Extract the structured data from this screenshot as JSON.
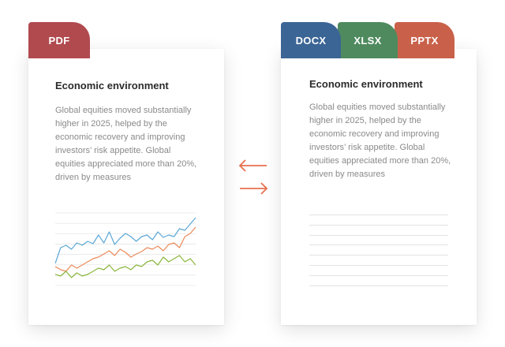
{
  "colors": {
    "pdf": "#b04a4f",
    "docx": "#3b6595",
    "xlsx": "#4f8a5f",
    "pptx": "#c9614a",
    "arrow": "#e8704d",
    "line_blue": "#5aa7d6",
    "line_orange": "#ec8a5a",
    "line_green": "#8ab63c"
  },
  "tabs": {
    "pdf": "PDF",
    "docx": "DOCX",
    "xlsx": "XLSX",
    "pptx": "PPTX"
  },
  "left_card": {
    "title": "Economic environment",
    "body": "Global equities moved substantially higher in 2025, helped by the economic recovery and improving investors’ risk appetite. Global equities appreciated more than 20%, driven by measures"
  },
  "right_card": {
    "title": "Economic environment",
    "body": "Global equities moved substantially higher in 2025, helped by the economic recovery and improving investors’ risk appetite. Global equities appreciated more than 20%, driven by measures"
  },
  "arrows": {
    "icon_left": "arrow-left-icon",
    "icon_right": "arrow-right-icon"
  },
  "chart_data": {
    "type": "line",
    "x": [
      0,
      1,
      2,
      3,
      4,
      5,
      6,
      7,
      8,
      9,
      10,
      11,
      12,
      13,
      14,
      15,
      16,
      17,
      18,
      19,
      20,
      21,
      22,
      23,
      24,
      25,
      26
    ],
    "ylim": [
      0,
      100
    ],
    "grid": true,
    "series": [
      {
        "values": [
          32,
          52,
          55,
          50,
          58,
          55,
          60,
          57,
          68,
          58,
          72,
          56,
          64,
          70,
          66,
          60,
          66,
          68,
          62,
          72,
          65,
          68,
          66,
          76,
          74,
          82,
          90
        ]
      },
      {
        "values": [
          28,
          24,
          22,
          30,
          26,
          30,
          34,
          38,
          40,
          44,
          48,
          42,
          50,
          46,
          40,
          44,
          47,
          52,
          50,
          54,
          48,
          56,
          58,
          52,
          66,
          70,
          78
        ]
      },
      {
        "values": [
          18,
          16,
          22,
          14,
          20,
          16,
          18,
          22,
          26,
          24,
          30,
          22,
          26,
          28,
          24,
          30,
          28,
          34,
          36,
          30,
          40,
          34,
          38,
          42,
          34,
          38,
          30
        ]
      }
    ]
  }
}
